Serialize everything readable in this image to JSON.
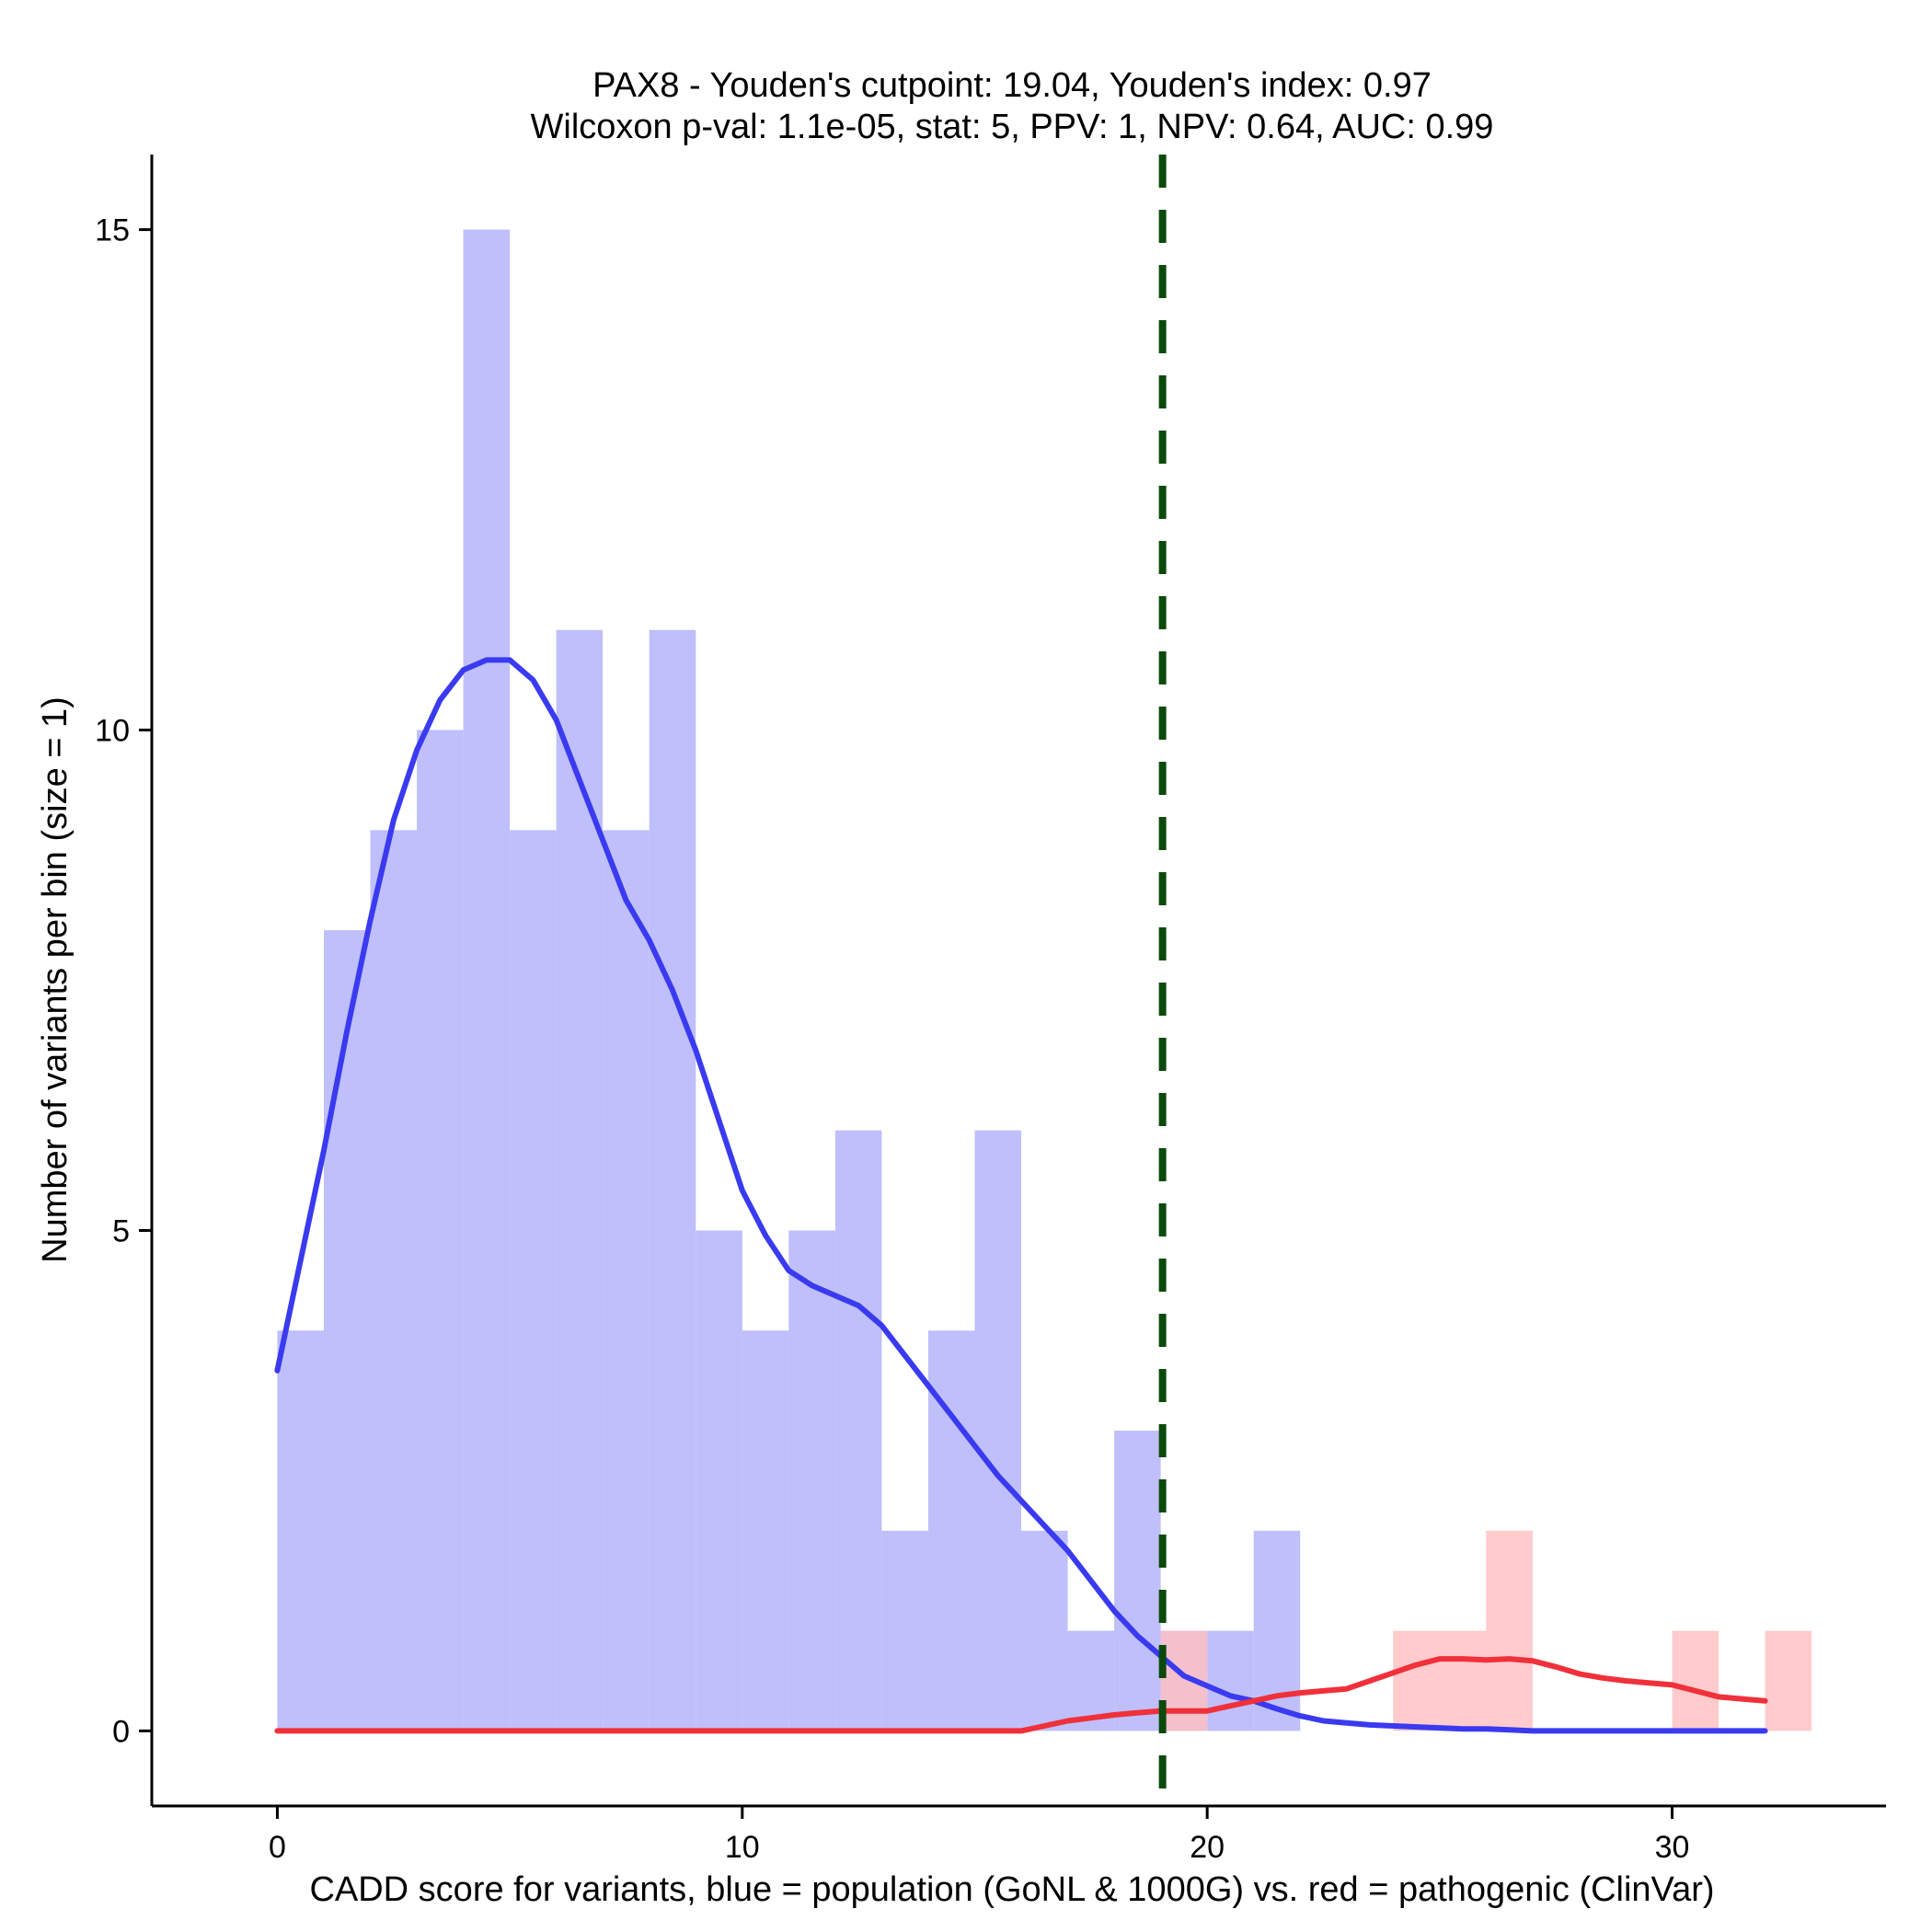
{
  "chart_data": {
    "type": "histogram",
    "title": "PAX8 - Youden's cutpoint: 19.04, Youden's index: 0.97",
    "subtitle": "Wilcoxon p-val: 1.1e-05, stat: 5, PPV: 1, NPV: 0.64, AUC: 0.99",
    "xlabel": "CADD score for variants, blue = population (GoNL & 1000G) vs. red = pathogenic (ClinVar)",
    "ylabel": "Number of variants per bin (size = 1)",
    "xlim": [
      -2.7,
      34.6
    ],
    "ylim": [
      -0.75,
      15.75
    ],
    "x_ticks": [
      0,
      10,
      20,
      30
    ],
    "y_ticks": [
      0,
      5,
      10,
      15
    ],
    "bin_size": 1,
    "cutpoint": 19.04,
    "series": [
      {
        "name": "population (GoNL & 1000G)",
        "color": "#bfbffb",
        "bin_start": 0,
        "counts": [
          4,
          8,
          9,
          10,
          15,
          9,
          11,
          9,
          11,
          5,
          4,
          5,
          6,
          2,
          4,
          6,
          2,
          1,
          3,
          1,
          1,
          2
        ]
      },
      {
        "name": "pathogenic (ClinVar)",
        "color": "#ffbfc1",
        "bin_start": 19,
        "counts": [
          1,
          0,
          0,
          0,
          0,
          1,
          1,
          2,
          0,
          0,
          0,
          1,
          0,
          1
        ]
      }
    ],
    "density_curves": [
      {
        "name": "population density",
        "color": "#3a3af0",
        "x": [
          0,
          0.5,
          1,
          1.5,
          2,
          2.5,
          3,
          3.5,
          4,
          4.5,
          5,
          5.5,
          6,
          6.5,
          7,
          7.5,
          8,
          8.5,
          9,
          9.5,
          10,
          10.5,
          11,
          11.5,
          12,
          12.5,
          13,
          13.5,
          14,
          14.5,
          15,
          15.5,
          16,
          16.5,
          17,
          17.5,
          18,
          18.5,
          19,
          19.5,
          20,
          20.5,
          21,
          21.5,
          22,
          22.5,
          23,
          23.5,
          24,
          24.5,
          25,
          25.5,
          26,
          26.5,
          27,
          27.5,
          28,
          28.5,
          29,
          29.5,
          30,
          31,
          32
        ],
        "y": [
          3.6,
          4.7,
          5.8,
          7.0,
          8.1,
          9.1,
          9.8,
          10.3,
          10.6,
          10.7,
          10.7,
          10.5,
          10.1,
          9.5,
          8.9,
          8.3,
          7.9,
          7.4,
          6.8,
          6.1,
          5.4,
          4.95,
          4.6,
          4.45,
          4.35,
          4.25,
          4.05,
          3.75,
          3.45,
          3.15,
          2.85,
          2.55,
          2.3,
          2.05,
          1.8,
          1.5,
          1.2,
          0.95,
          0.75,
          0.55,
          0.45,
          0.35,
          0.3,
          0.22,
          0.15,
          0.1,
          0.08,
          0.06,
          0.05,
          0.04,
          0.03,
          0.02,
          0.02,
          0.01,
          0.0,
          0.0,
          0.0,
          0.0,
          0.0,
          0.0,
          0.0,
          0.0,
          0.0
        ]
      },
      {
        "name": "pathogenic density",
        "color": "#f0303a",
        "x": [
          0,
          5,
          10,
          15,
          16,
          16.5,
          17,
          17.5,
          18,
          18.5,
          19,
          19.5,
          20,
          20.5,
          21,
          21.5,
          22,
          22.5,
          23,
          23.5,
          24,
          24.5,
          25,
          25.5,
          26,
          26.5,
          27,
          27.5,
          28,
          28.5,
          29,
          29.5,
          30,
          30.5,
          31,
          31.5,
          32
        ],
        "y": [
          0.0,
          0.0,
          0.0,
          0.0,
          0.0,
          0.05,
          0.1,
          0.13,
          0.16,
          0.18,
          0.2,
          0.2,
          0.2,
          0.25,
          0.3,
          0.35,
          0.38,
          0.4,
          0.42,
          0.5,
          0.58,
          0.66,
          0.72,
          0.72,
          0.71,
          0.72,
          0.7,
          0.64,
          0.57,
          0.53,
          0.5,
          0.48,
          0.46,
          0.4,
          0.34,
          0.32,
          0.3
        ]
      }
    ]
  }
}
